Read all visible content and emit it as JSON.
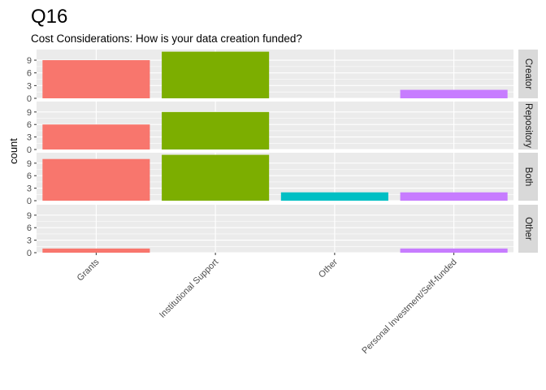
{
  "title": "Q16",
  "subtitle": "Cost Considerations: How is your data creation funded?",
  "colors": {
    "panel_background": "#ebebeb",
    "grid": "#ffffff",
    "strip_background": "#d9d9d9",
    "tick": "#333333"
  },
  "chart_data": {
    "type": "bar",
    "title": "Q16",
    "subtitle": "Cost Considerations: How is your data creation funded?",
    "xlabel": "",
    "ylabel": "count",
    "categories": [
      "Grants",
      "Institutional Support",
      "Other",
      "Personal Investment/Self-funded"
    ],
    "category_colors": [
      "#F8766D",
      "#7CAE00",
      "#00BFC4",
      "#C77CFF"
    ],
    "ylim": [
      0,
      11.5
    ],
    "yticks": [
      0,
      3,
      6,
      9
    ],
    "facets": [
      {
        "label": "Creator",
        "values": [
          9,
          11,
          0,
          2
        ]
      },
      {
        "label": "Repository",
        "values": [
          6,
          9,
          0,
          0
        ]
      },
      {
        "label": "Both",
        "values": [
          10,
          11,
          2,
          2
        ]
      },
      {
        "label": "Other",
        "values": [
          1,
          0,
          0,
          1
        ]
      }
    ],
    "legend": "none",
    "grid": true
  }
}
